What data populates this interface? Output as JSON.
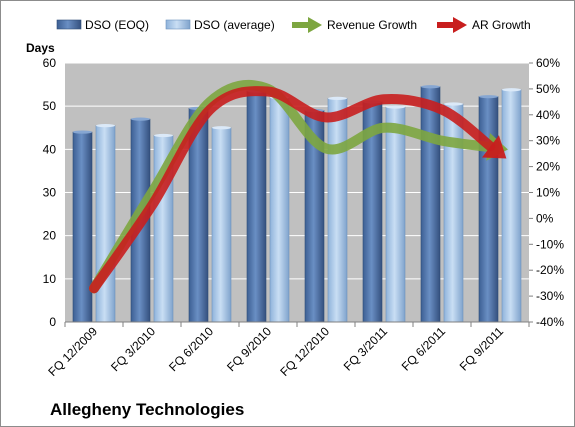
{
  "chart_data": {
    "type": "bar",
    "title": "Allegheny Technologies",
    "ylabel": "Days",
    "ylim": [
      0,
      60
    ],
    "y2lim": [
      -40,
      60
    ],
    "yticks": [
      "0",
      "10",
      "20",
      "30",
      "40",
      "50",
      "60"
    ],
    "y2ticks": [
      "-40%",
      "-30%",
      "-20%",
      "-10%",
      "0%",
      "10%",
      "20%",
      "30%",
      "40%",
      "50%",
      "60%"
    ],
    "categories": [
      "FQ 12/2009",
      "FQ 3/2010",
      "FQ 6/2010",
      "FQ 9/2010",
      "FQ 12/2010",
      "FQ 3/2011",
      "FQ 6/2011",
      "FQ 9/2011"
    ],
    "legend_position": "top",
    "grid": true,
    "series": [
      {
        "name": "DSO (EOQ)",
        "kind": "bar",
        "axis": "left",
        "color": "#4a6fa5",
        "values": [
          44,
          47,
          49.5,
          53.5,
          49,
          51,
          54.5,
          52.2
        ]
      },
      {
        "name": "DSO (average)",
        "kind": "bar",
        "axis": "left",
        "color": "#9ebfe2",
        "values": [
          45.5,
          43.2,
          45,
          52,
          51.8,
          49.8,
          50.5,
          53.8
        ]
      },
      {
        "name": "Revenue Growth",
        "kind": "arrow",
        "axis": "right",
        "color": "#7da640",
        "values": [
          -27,
          10,
          45,
          50,
          27,
          35,
          30,
          27
        ]
      },
      {
        "name": "AR Growth",
        "kind": "arrow",
        "axis": "right",
        "color": "#c81e1e",
        "values": [
          -27,
          5,
          42,
          49,
          39,
          46,
          42,
          25
        ]
      }
    ]
  }
}
